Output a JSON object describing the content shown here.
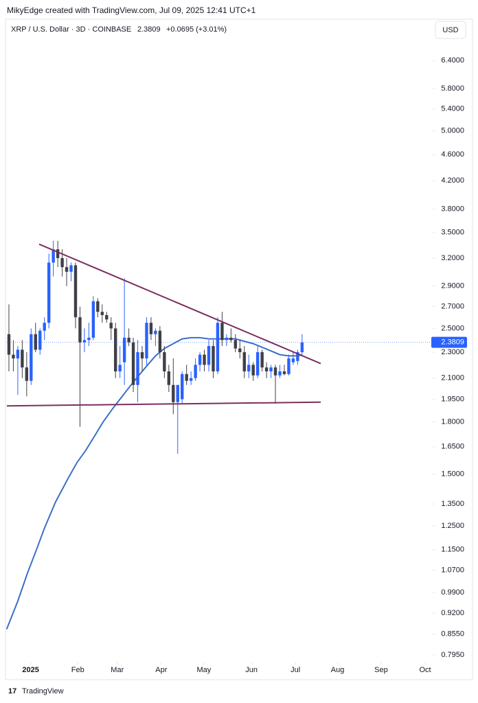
{
  "header": {
    "attribution": "MikyEdge created with TradingView.com, Jul 09, 2025 12:41 UTC+1",
    "symbol": "XRP / U.S. Dollar · 3D · COINBASE",
    "price": "2.3809",
    "change": "+0.0695 (+3.01%)",
    "currency": "USD"
  },
  "footer": {
    "logo": "TradingView"
  },
  "chart_data": {
    "type": "candlestick",
    "log_scale": true,
    "up_color": "#2962ff",
    "down_color": "#3f3f46",
    "open": [
      2.45,
      2.28,
      2.25,
      2.32,
      2.18,
      2.08,
      2.45,
      2.32,
      2.48,
      2.55,
      3.15,
      3.3,
      3.2,
      3.1,
      3.05,
      3.12,
      2.6,
      2.38,
      2.4,
      2.42,
      2.75,
      2.65,
      2.62,
      2.55,
      2.5,
      2.15,
      2.22,
      2.42,
      2.38,
      2.05,
      2.3,
      2.25,
      2.55,
      2.45,
      2.48,
      2.3,
      2.15,
      2.05,
      1.93,
      1.95,
      2.13,
      2.08,
      2.1,
      2.2,
      2.28,
      2.2,
      2.35,
      2.15,
      2.55,
      2.4,
      2.42,
      2.4,
      2.33,
      2.3,
      2.15,
      2.2,
      2.12,
      2.3,
      2.18,
      2.15,
      2.18,
      2.12,
      2.15,
      2.13,
      2.22,
      2.23,
      2.3
    ],
    "high": [
      2.72,
      2.4,
      2.35,
      2.4,
      2.3,
      2.5,
      2.55,
      2.5,
      2.6,
      3.25,
      3.4,
      3.4,
      3.3,
      3.2,
      3.15,
      3.15,
      2.7,
      2.5,
      2.55,
      2.8,
      2.78,
      2.72,
      2.65,
      2.6,
      2.55,
      2.35,
      2.98,
      2.5,
      2.42,
      2.4,
      2.35,
      2.6,
      2.6,
      2.5,
      2.52,
      2.35,
      2.2,
      2.25,
      2.05,
      2.15,
      2.2,
      2.15,
      2.25,
      2.3,
      2.32,
      2.4,
      2.4,
      2.6,
      2.65,
      2.45,
      2.5,
      2.45,
      2.4,
      2.35,
      2.28,
      2.22,
      2.35,
      2.32,
      2.22,
      2.2,
      2.2,
      2.2,
      2.2,
      2.28,
      2.3,
      2.32,
      2.45
    ],
    "low": [
      2.15,
      2.15,
      1.98,
      2.1,
      1.97,
      2.05,
      2.3,
      2.28,
      2.4,
      2.5,
      3.0,
      3.1,
      3.0,
      2.9,
      2.95,
      2.5,
      1.77,
      2.3,
      2.35,
      2.4,
      2.6,
      2.55,
      2.55,
      2.4,
      2.1,
      2.1,
      2.05,
      2.35,
      2.0,
      1.93,
      2.15,
      2.2,
      2.4,
      2.35,
      2.25,
      2.1,
      2.0,
      1.85,
      1.61,
      1.92,
      2.05,
      2.05,
      2.08,
      2.15,
      2.15,
      2.15,
      2.1,
      2.13,
      2.35,
      2.35,
      2.38,
      2.3,
      2.25,
      2.1,
      2.1,
      2.08,
      2.1,
      2.15,
      2.1,
      2.1,
      1.92,
      2.1,
      2.12,
      2.12,
      2.2,
      2.2,
      2.28
    ],
    "close": [
      2.28,
      2.25,
      2.32,
      2.18,
      2.08,
      2.45,
      2.32,
      2.48,
      2.55,
      3.15,
      3.3,
      3.2,
      3.1,
      3.05,
      3.12,
      2.6,
      2.38,
      2.4,
      2.42,
      2.75,
      2.65,
      2.62,
      2.58,
      2.5,
      2.15,
      2.2,
      2.42,
      2.38,
      2.05,
      2.3,
      2.25,
      2.55,
      2.45,
      2.48,
      2.3,
      2.15,
      2.05,
      1.93,
      2.05,
      2.13,
      2.08,
      2.1,
      2.2,
      2.28,
      2.2,
      2.35,
      2.15,
      2.55,
      2.4,
      2.42,
      2.4,
      2.33,
      2.3,
      2.15,
      2.2,
      2.12,
      2.3,
      2.18,
      2.15,
      2.18,
      2.12,
      2.15,
      2.13,
      2.25,
      2.25,
      2.3,
      2.38
    ],
    "moving_average": {
      "color": "#3a6fc9",
      "x": [
        -0.5,
        2,
        4.2,
        6.2,
        8,
        10.5,
        13.4,
        15.3,
        17.3,
        19.2,
        21.2,
        23.2,
        25,
        27,
        29,
        31,
        33,
        35,
        37,
        39,
        41,
        43,
        45,
        48,
        51,
        53,
        55,
        57,
        59,
        61,
        63,
        65,
        66
      ],
      "values": [
        0.87,
        0.96,
        1.06,
        1.15,
        1.24,
        1.36,
        1.48,
        1.56,
        1.63,
        1.71,
        1.8,
        1.88,
        1.95,
        2.03,
        2.11,
        2.19,
        2.27,
        2.33,
        2.37,
        2.41,
        2.42,
        2.42,
        2.41,
        2.41,
        2.41,
        2.39,
        2.37,
        2.34,
        2.31,
        2.28,
        2.27,
        2.27,
        2.28
      ]
    },
    "trendlines": [
      {
        "color": "#7b2d5e",
        "x": [
          6.8,
          70.2
        ],
        "values": [
          3.36,
          2.21
        ]
      },
      {
        "color": "#7b2d5e",
        "x": [
          -0.46,
          70.2
        ],
        "values": [
          1.905,
          1.93
        ]
      }
    ],
    "last_price": 2.3809,
    "last_color": "#2962ff",
    "xlim": [
      -0.46,
      95.4
    ],
    "xticks": [
      {
        "value": 4.9,
        "label": "2025"
      },
      {
        "value": 15.5,
        "label": "Feb"
      },
      {
        "value": 24.4,
        "label": "Mar"
      },
      {
        "value": 34.3,
        "label": "Apr"
      },
      {
        "value": 43.9,
        "label": "May"
      },
      {
        "value": 54.6,
        "label": "Jun"
      },
      {
        "value": 64.5,
        "label": "Jul"
      },
      {
        "value": 74.0,
        "label": "Aug"
      },
      {
        "value": 83.8,
        "label": "Sep"
      },
      {
        "value": 93.7,
        "label": "Oct"
      }
    ],
    "ylim": [
      0.774,
      7.4
    ],
    "yticks": [
      {
        "value": 6.4,
        "label": "6.4000"
      },
      {
        "value": 5.8,
        "label": "5.8000"
      },
      {
        "value": 5.4,
        "label": "5.4000"
      },
      {
        "value": 5.0,
        "label": "5.0000"
      },
      {
        "value": 4.6,
        "label": "4.6000"
      },
      {
        "value": 4.2,
        "label": "4.2000"
      },
      {
        "value": 3.8,
        "label": "3.8000"
      },
      {
        "value": 3.5,
        "label": "3.5000"
      },
      {
        "value": 3.2,
        "label": "3.2000"
      },
      {
        "value": 2.9,
        "label": "2.9000"
      },
      {
        "value": 2.7,
        "label": "2.7000"
      },
      {
        "value": 2.5,
        "label": "2.5000"
      },
      {
        "value": 2.3,
        "label": "2.3000"
      },
      {
        "value": 2.1,
        "label": "2.1000"
      },
      {
        "value": 1.95,
        "label": "1.9500"
      },
      {
        "value": 1.8,
        "label": "1.8000"
      },
      {
        "value": 1.65,
        "label": "1.6500"
      },
      {
        "value": 1.5,
        "label": "1.5000"
      },
      {
        "value": 1.35,
        "label": "1.3500"
      },
      {
        "value": 1.25,
        "label": "1.2500"
      },
      {
        "value": 1.15,
        "label": "1.1500"
      },
      {
        "value": 1.07,
        "label": "1.0700"
      },
      {
        "value": 0.99,
        "label": "0.9900"
      },
      {
        "value": 0.92,
        "label": "0.9200"
      },
      {
        "value": 0.855,
        "label": "0.8550"
      },
      {
        "value": 0.795,
        "label": "0.7950"
      }
    ]
  }
}
